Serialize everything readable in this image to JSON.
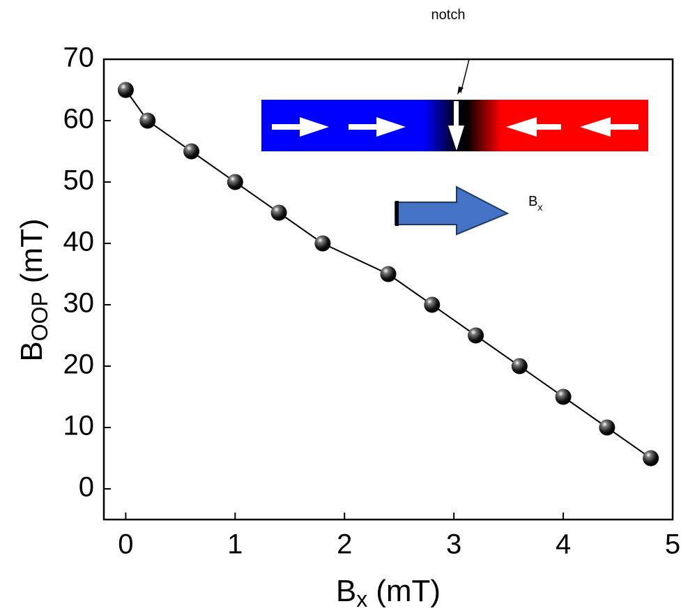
{
  "chart_data": {
    "type": "line",
    "xlabel": [
      "B",
      "x",
      "(mT)"
    ],
    "ylabel": [
      "B",
      "OOP",
      "(mT)"
    ],
    "annotations": {
      "notch": "notch",
      "field": [
        "B",
        "x"
      ]
    },
    "series": [
      {
        "color": "#000000",
        "x": [
          0,
          0.2,
          0.6,
          1.0,
          1.4,
          1.8,
          2.4,
          2.8,
          3.2,
          3.6,
          4.0,
          4.4,
          4.8
        ],
        "values": [
          65,
          60,
          55,
          50,
          45,
          40,
          35,
          30,
          25,
          20,
          15,
          10,
          5
        ]
      }
    ],
    "xlim": [
      -0.2,
      5.0
    ],
    "xticks": [
      0,
      1,
      2,
      3,
      4,
      5
    ],
    "ylim": [
      -5,
      70
    ],
    "yticks": [
      0,
      10,
      20,
      30,
      40,
      50,
      60,
      70
    ]
  }
}
